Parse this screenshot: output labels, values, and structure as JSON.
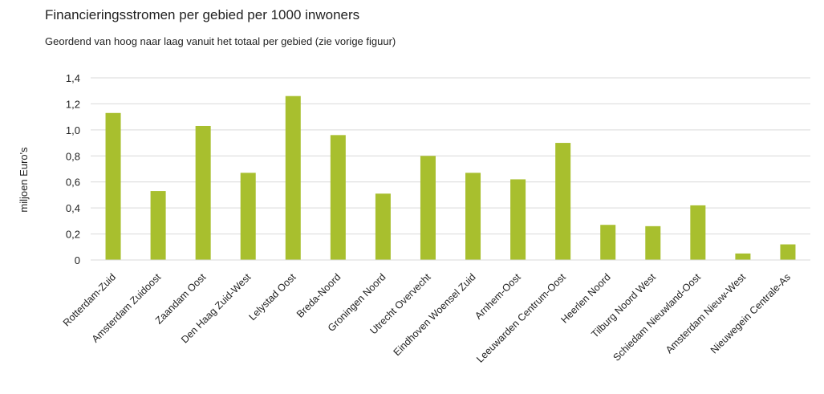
{
  "chart_data": {
    "type": "bar",
    "title": "Financieringsstromen per gebied per 1000 inwoners",
    "subtitle": "Geordend van hoog naar laag vanuit het totaal per gebied (zie vorige figuur)",
    "xlabel": "",
    "ylabel": "miljoen Euro's",
    "ylim": [
      0,
      1.4
    ],
    "yticks": [
      {
        "value": 0,
        "label": "0"
      },
      {
        "value": 0.2,
        "label": "0,2"
      },
      {
        "value": 0.4,
        "label": "0,4"
      },
      {
        "value": 0.6,
        "label": "0,6"
      },
      {
        "value": 0.8,
        "label": "0,8"
      },
      {
        "value": 1.0,
        "label": "1,0"
      },
      {
        "value": 1.2,
        "label": "1,2"
      },
      {
        "value": 1.4,
        "label": "1,4"
      }
    ],
    "grid": true,
    "legend": "none",
    "bar_color": "#a8bf2e",
    "categories": [
      "Rotterdam-Zuid",
      "Amsterdam Zuidoost",
      "Zaandam Oost",
      "Den Haag Zuid-West",
      "Lelystad Oost",
      "Breda-Noord",
      "Groningen Noord",
      "Utrecht Overvecht",
      "Eindhoven Woensel Zuid",
      "Arnhem-Oost",
      "Leeuwarden Centrum-Oost",
      "Heerlen Noord",
      "Tilburg Noord West",
      "Schiedam Nieuwland-Oost",
      "Amsterdam Nieuw-West",
      "Nieuwegein Centrale-As"
    ],
    "values": [
      1.13,
      0.53,
      1.03,
      0.67,
      1.26,
      0.96,
      0.51,
      0.8,
      0.67,
      0.62,
      0.9,
      0.27,
      0.26,
      0.42,
      0.05,
      0.12
    ]
  }
}
